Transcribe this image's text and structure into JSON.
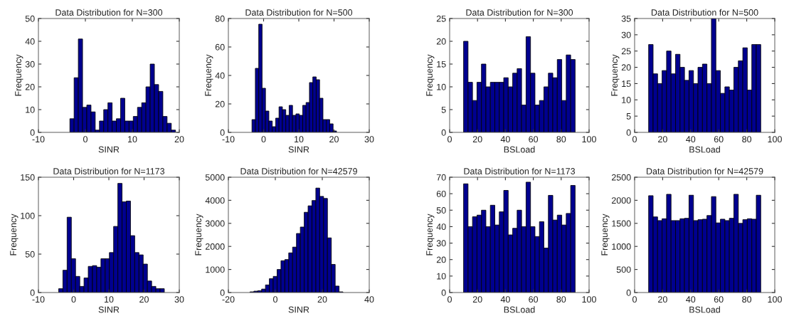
{
  "chart_data": [
    {
      "type": "histogram",
      "title": "Data Distribution for N=300",
      "xlabel": "SINR",
      "ylabel": "Frequency",
      "color": "#00008f",
      "xlim": [
        -10,
        20
      ],
      "xticks": [
        -10,
        0,
        10,
        20
      ],
      "ylim": [
        0,
        50
      ],
      "yticks": [
        0,
        10,
        20,
        30,
        40,
        50
      ],
      "bins": [
        -3.3,
        -2.4,
        -1.5,
        -0.6,
        0.3,
        1.2,
        2.1,
        3.0,
        3.9,
        4.8,
        5.7,
        6.6,
        7.5,
        8.4,
        9.3,
        10.2,
        11.1,
        12.0,
        12.9,
        13.8,
        14.7,
        15.6,
        16.5,
        17.4,
        18.3,
        19.2
      ],
      "values": [
        6,
        24,
        41,
        11,
        12,
        9,
        1,
        5,
        10,
        13,
        5,
        6,
        15,
        5,
        5,
        7,
        11,
        13,
        20,
        30,
        21,
        18,
        7,
        4,
        1
      ]
    },
    {
      "type": "histogram",
      "title": "Data Distribution for N=500",
      "xlabel": "SINR",
      "ylabel": "Frequency",
      "color": "#00008f",
      "xlim": [
        -10,
        30
      ],
      "xticks": [
        -10,
        0,
        10,
        20,
        30
      ],
      "ylim": [
        0,
        80
      ],
      "yticks": [
        0,
        20,
        40,
        60,
        80
      ],
      "bins": [
        -3.3,
        -2.34,
        -1.38,
        -0.42,
        0.54,
        1.5,
        2.46,
        3.42,
        4.38,
        5.34,
        6.3,
        7.26,
        8.22,
        9.18,
        10.14,
        11.1,
        12.06,
        13.02,
        13.98,
        14.94,
        15.9,
        16.86,
        17.82,
        18.78,
        19.74,
        20.7
      ],
      "values": [
        9,
        45,
        76,
        31,
        15,
        8,
        4,
        10,
        18,
        16,
        12,
        19,
        12,
        13,
        12,
        19,
        21,
        35,
        39,
        37,
        24,
        9,
        9,
        6,
        1
      ]
    },
    {
      "type": "histogram",
      "title": "Data Distribution for N=300",
      "xlabel": "BSLoad",
      "ylabel": "Frequency",
      "color": "#00008f",
      "xlim": [
        0,
        100
      ],
      "xticks": [
        0,
        20,
        40,
        60,
        80,
        100
      ],
      "ylim": [
        0,
        25
      ],
      "yticks": [
        0,
        5,
        10,
        15,
        20,
        25
      ],
      "bins": [
        10,
        13.2,
        16.4,
        19.6,
        22.8,
        26,
        29.2,
        32.4,
        35.6,
        38.8,
        42,
        45.2,
        48.4,
        51.6,
        54.8,
        58,
        61.2,
        64.4,
        67.6,
        70.8,
        74,
        77.2,
        80.4,
        83.6,
        86.8,
        90
      ],
      "values": [
        20,
        11,
        7,
        11,
        15,
        10,
        11,
        11,
        11,
        12,
        10,
        13,
        14,
        6,
        21,
        13,
        6,
        7,
        10,
        13,
        12,
        16,
        7,
        17,
        16
      ]
    },
    {
      "type": "histogram",
      "title": "Data Distribution for N=500",
      "xlabel": "BSLoad",
      "ylabel": "Frequency",
      "color": "#00008f",
      "xlim": [
        0,
        100
      ],
      "xticks": [
        0,
        20,
        40,
        60,
        80,
        100
      ],
      "ylim": [
        0,
        35
      ],
      "yticks": [
        0,
        5,
        10,
        15,
        20,
        25,
        30,
        35
      ],
      "bins": [
        10,
        13.2,
        16.4,
        19.6,
        22.8,
        26,
        29.2,
        32.4,
        35.6,
        38.8,
        42,
        45.2,
        48.4,
        51.6,
        54.8,
        58,
        61.2,
        64.4,
        67.6,
        70.8,
        74,
        77.2,
        80.4,
        83.6,
        86.8,
        90
      ],
      "values": [
        27,
        18,
        15,
        19,
        25,
        18,
        24,
        20,
        16,
        19,
        15,
        20,
        21,
        15,
        35,
        19,
        12,
        14,
        13,
        20,
        22,
        26,
        13,
        27,
        27
      ]
    },
    {
      "type": "histogram",
      "title": "Data Distribution for N=1173",
      "xlabel": "SINR",
      "ylabel": "Frequency",
      "color": "#00008f",
      "xlim": [
        -10,
        30
      ],
      "xticks": [
        -10,
        0,
        10,
        20,
        30
      ],
      "ylim": [
        0,
        150
      ],
      "yticks": [
        0,
        50,
        100,
        150
      ],
      "bins": [
        -4.25,
        -3.05,
        -1.85,
        -0.65,
        0.55,
        1.75,
        2.95,
        4.15,
        5.35,
        6.55,
        7.75,
        8.95,
        10.15,
        11.35,
        12.55,
        13.75,
        14.95,
        16.15,
        17.35,
        18.55,
        19.75,
        20.95,
        22.15,
        23.35,
        24.55,
        25.75
      ],
      "values": [
        5,
        29,
        98,
        44,
        21,
        8,
        19,
        34,
        35,
        33,
        44,
        44,
        52,
        86,
        142,
        118,
        119,
        74,
        52,
        49,
        37,
        15,
        8,
        5,
        5
      ]
    },
    {
      "type": "histogram",
      "title": "Data Distribution for N=42579",
      "xlabel": "SINR",
      "ylabel": "Frequency",
      "color": "#00008f",
      "xlim": [
        -20,
        40
      ],
      "xticks": [
        -20,
        0,
        20,
        40
      ],
      "ylim": [
        0,
        5000
      ],
      "yticks": [
        0,
        1000,
        2000,
        3000,
        4000,
        5000
      ],
      "bins": [
        -12.45,
        -10.8,
        -9.15,
        -7.5,
        -5.85,
        -4.2,
        -2.55,
        -0.9,
        0.75,
        2.4,
        4.05,
        5.7,
        7.35,
        9.0,
        10.65,
        12.3,
        13.95,
        15.6,
        17.25,
        18.9,
        20.55,
        22.2,
        23.85,
        25.5,
        27.15,
        28.8
      ],
      "values": [
        null,
        30,
        60,
        80,
        150,
        330,
        600,
        700,
        1000,
        1380,
        1430,
        1720,
        1970,
        2560,
        2840,
        3480,
        3760,
        3990,
        4530,
        4170,
        4080,
        2370,
        1220,
        280,
        30
      ]
    },
    {
      "type": "histogram",
      "title": "Data Distribution for N=1173",
      "xlabel": "BSLoad",
      "ylabel": "Frequency",
      "color": "#00008f",
      "xlim": [
        0,
        100
      ],
      "xticks": [
        0,
        20,
        40,
        60,
        80,
        100
      ],
      "ylim": [
        0,
        70
      ],
      "yticks": [
        0,
        10,
        20,
        30,
        40,
        50,
        60,
        70
      ],
      "bins": [
        10,
        13.2,
        16.4,
        19.6,
        22.8,
        26,
        29.2,
        32.4,
        35.6,
        38.8,
        42,
        45.2,
        48.4,
        51.6,
        54.8,
        58,
        61.2,
        64.4,
        67.6,
        70.8,
        74,
        77.2,
        80.4,
        83.6,
        86.8,
        90
      ],
      "values": [
        66,
        40,
        46,
        47,
        50,
        40,
        53,
        41,
        49,
        62,
        35,
        39,
        50,
        40,
        67,
        40,
        34,
        43,
        27,
        59,
        44,
        47,
        41,
        48,
        65
      ]
    },
    {
      "type": "histogram",
      "title": "Data Distribution for N=42579",
      "xlabel": "BSLoad",
      "ylabel": "Frequency",
      "color": "#00008f",
      "xlim": [
        0,
        100
      ],
      "xticks": [
        0,
        20,
        40,
        60,
        80,
        100
      ],
      "ylim": [
        0,
        2500
      ],
      "yticks": [
        0,
        500,
        1000,
        1500,
        2000,
        2500
      ],
      "bins": [
        10,
        13.2,
        16.4,
        19.6,
        22.8,
        26,
        29.2,
        32.4,
        35.6,
        38.8,
        42,
        45.2,
        48.4,
        51.6,
        54.8,
        58,
        61.2,
        64.4,
        67.6,
        70.8,
        74,
        77.2,
        80.4,
        83.6,
        86.8,
        90
      ],
      "values": [
        2100,
        1640,
        1560,
        1600,
        2130,
        1560,
        1560,
        1600,
        1610,
        2110,
        1560,
        1580,
        1590,
        1670,
        2080,
        1510,
        1590,
        1560,
        1610,
        2130,
        1500,
        1580,
        1600,
        1590,
        2110
      ]
    }
  ]
}
